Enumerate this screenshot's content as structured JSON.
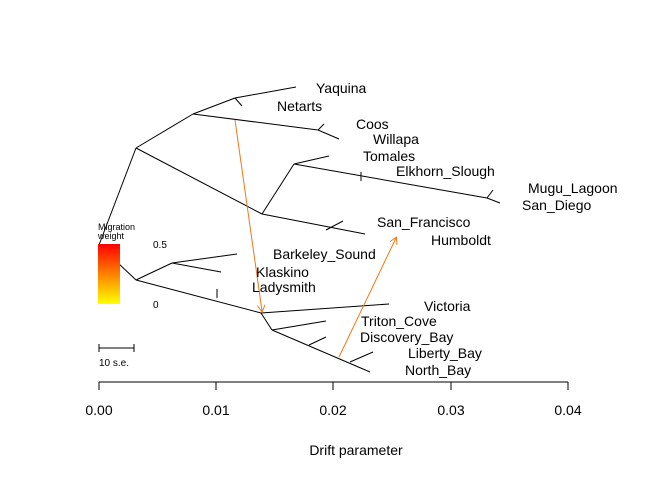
{
  "axis": {
    "label": "Drift parameter",
    "ticks": [
      "0.00",
      "0.01",
      "0.02",
      "0.03",
      "0.04"
    ]
  },
  "legend": {
    "title_line1": "Migration",
    "title_line2": "weight",
    "max_label": "0.5",
    "min_label": "0",
    "gradient_top": "#ff0000",
    "gradient_bottom": "#ffff00"
  },
  "scale_bar": {
    "label": "10 s.e."
  },
  "colors": {
    "migration_edge": "#f07818",
    "tree_edge": "#000000"
  },
  "leaves": {
    "yaquina": "Yaquina",
    "netarts": "Netarts",
    "coos": "Coos",
    "willapa": "Willapa",
    "tomales": "Tomales",
    "elkhorn": "Elkhorn_Slough",
    "mugu": "Mugu_Lagoon",
    "san_diego": "San_Diego",
    "san_francisco": "San_Francisco",
    "humboldt": "Humboldt",
    "barkeley": "Barkeley_Sound",
    "klaskino": "Klaskino",
    "ladysmith": "Ladysmith",
    "victoria": "Victoria",
    "triton": "Triton_Cove",
    "discovery": "Discovery_Bay",
    "liberty": "Liberty_Bay",
    "north_bay": "North_Bay"
  }
}
